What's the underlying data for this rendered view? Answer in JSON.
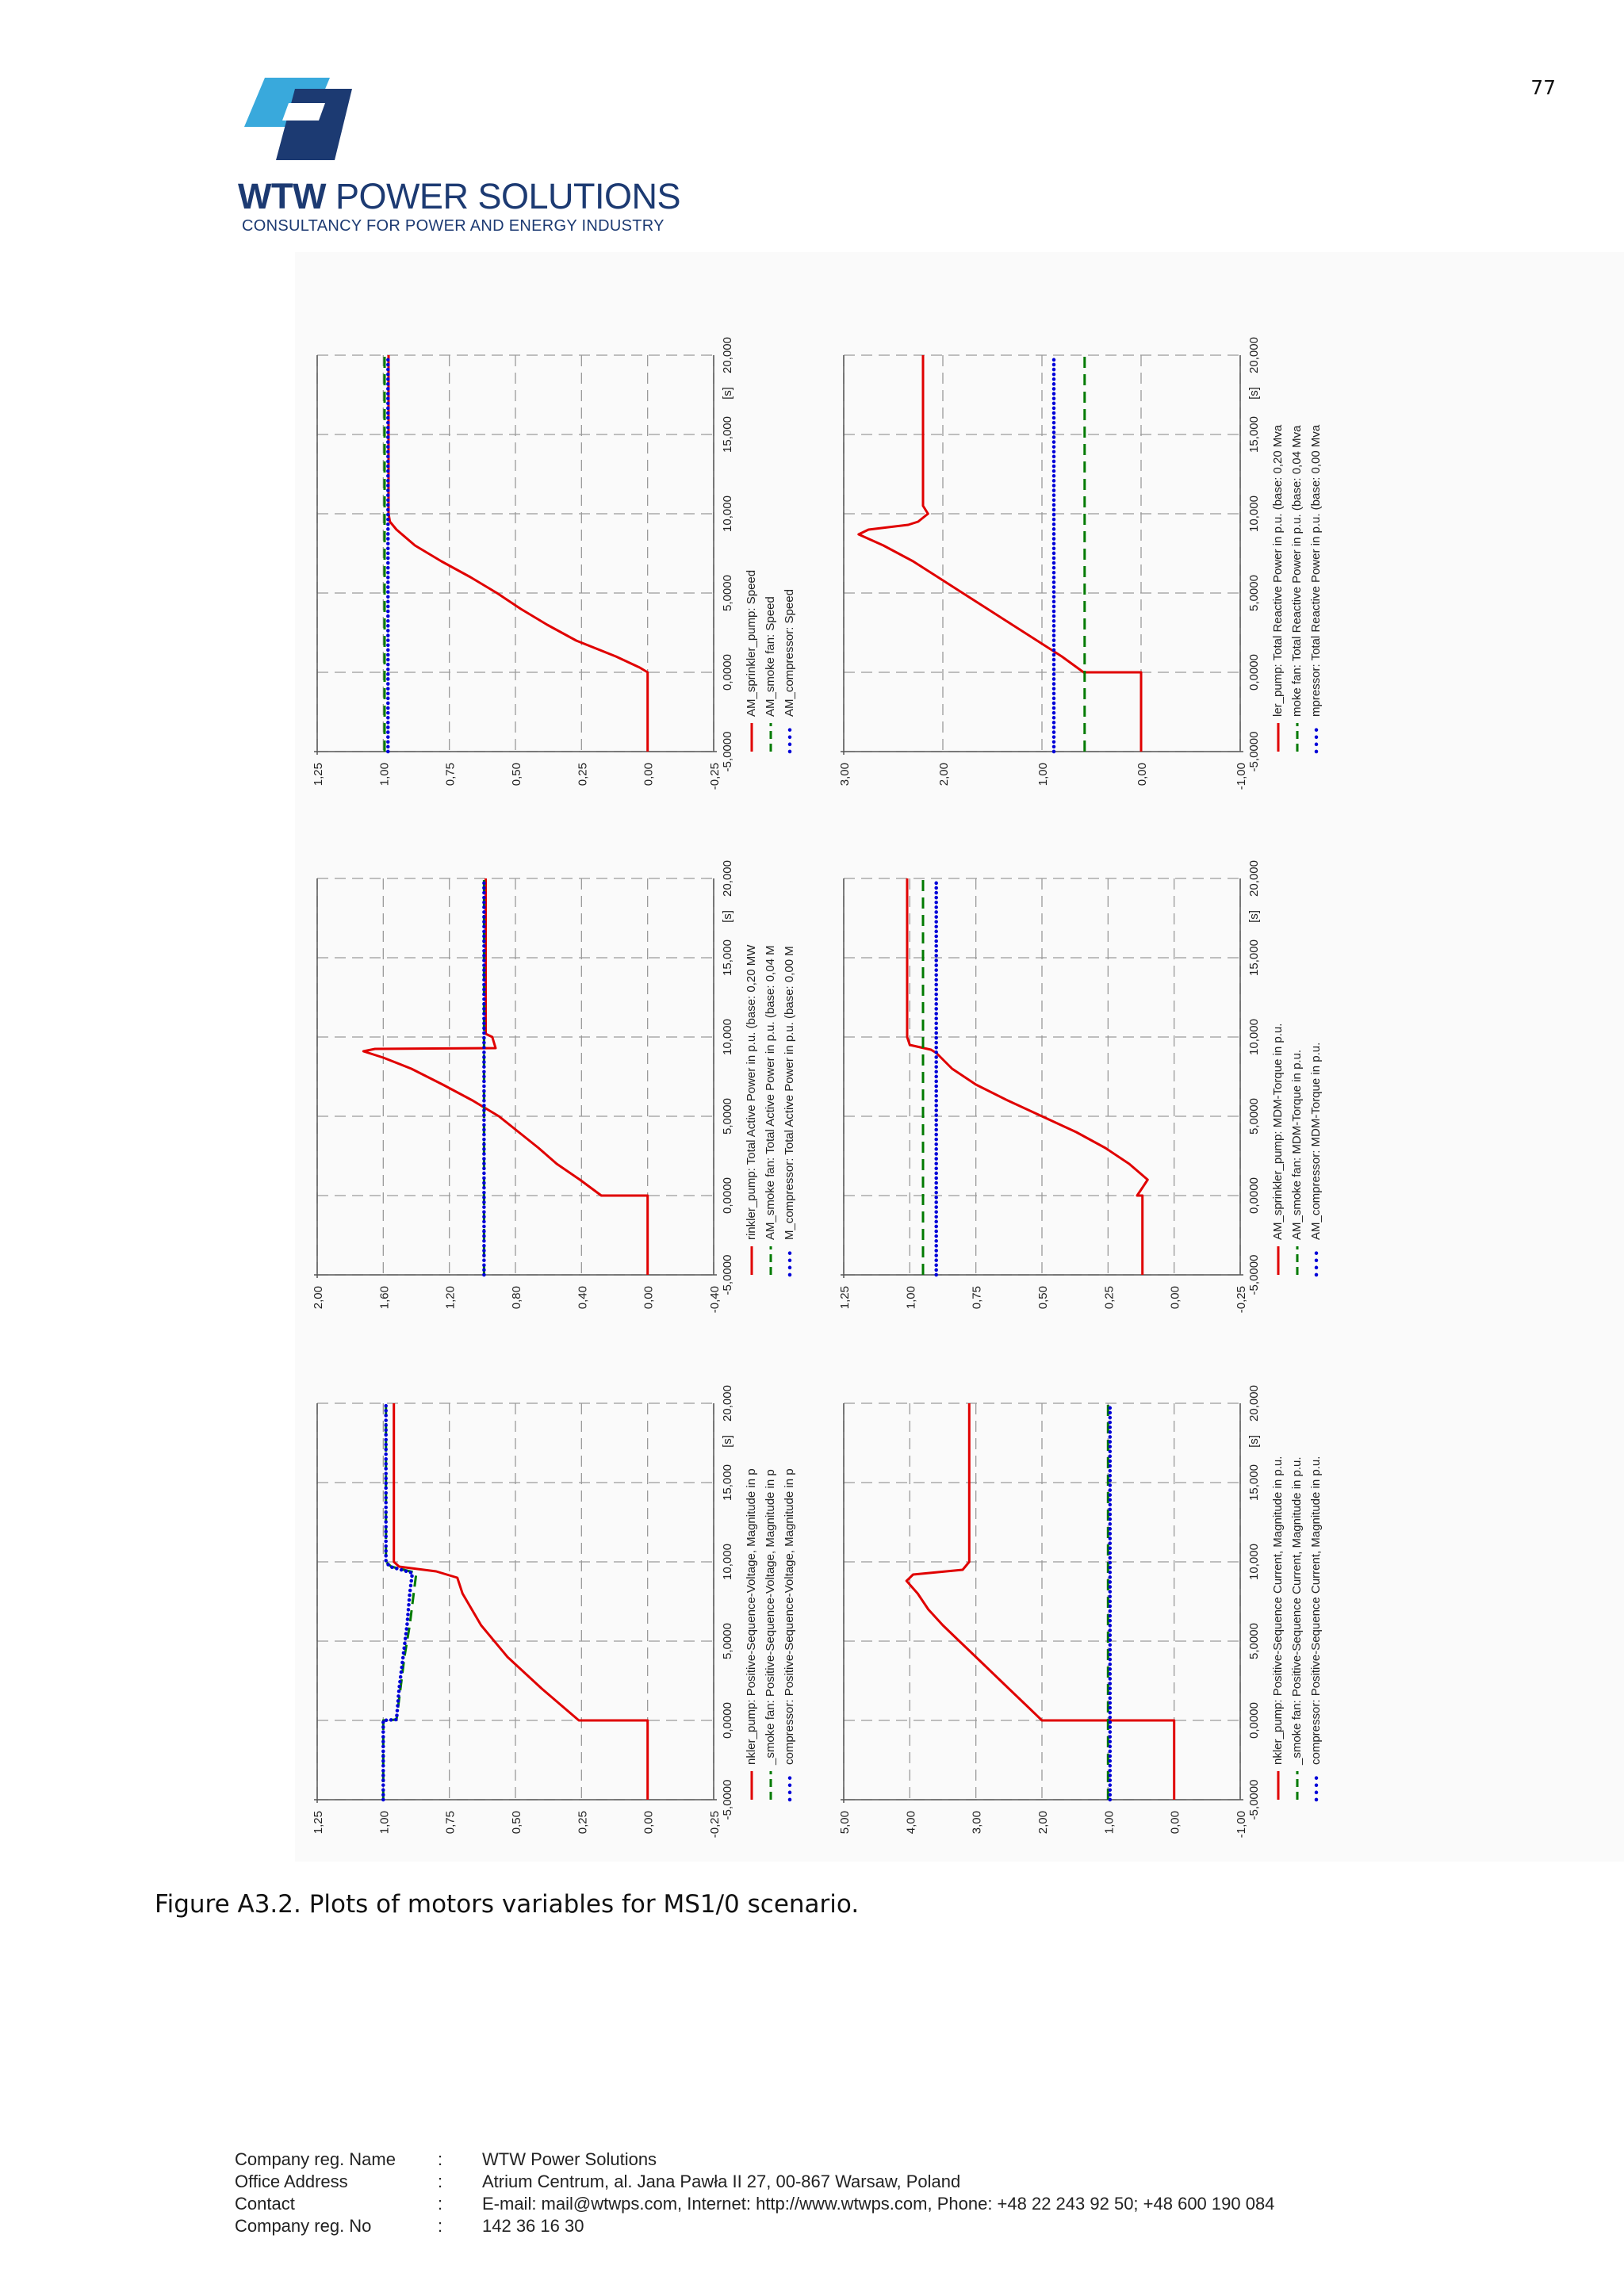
{
  "page_number": "77",
  "header": {
    "brand_bold": "WTW",
    "brand_rest": " POWER SOLUTIONS",
    "tagline": "CONSULTANCY FOR POWER AND ENERGY INDUSTRY"
  },
  "caption": "Figure A3.2. Plots of motors variables for MS1/0 scenario.",
  "footer": {
    "rows": [
      {
        "label": "Company reg. Name",
        "sep": ":",
        "value": "WTW Power Solutions"
      },
      {
        "label": "Office Address",
        "sep": ":",
        "value": "Atrium Centrum, al. Jana Pawła II 27, 00-867 Warsaw, Poland"
      },
      {
        "label": "Contact",
        "sep": ":",
        "value": "E-mail: mail@wtwps.com, Internet: http://www.wtwps.com, Phone: +48 22 243 92 50; +48 600 190 084"
      },
      {
        "label": "Company reg. No",
        "sep": ":",
        "value": "142 36 16 30"
      }
    ]
  },
  "colors": {
    "brand_blue": "#1c3a72",
    "logo_light": "#39a9dc",
    "logo_dark": "#1c3a72",
    "series_red": "#e00000",
    "series_green": "#007a00",
    "series_blue": "#0000d8",
    "grid": "#9a9a9a"
  },
  "chart_data": [
    {
      "type": "line",
      "title": "Speed",
      "x_ticks": [
        "-5,0000",
        "0,0000",
        "5,0000",
        "10,000",
        "15,000",
        "[s]",
        "20,000"
      ],
      "xlim": [
        -5,
        20
      ],
      "y_ticks": [
        "1,25",
        "1,00",
        "0,75",
        "0,50",
        "0,25",
        "0,00",
        "-0,25"
      ],
      "ylim": [
        -0.25,
        1.25
      ],
      "series": [
        {
          "name": "AM_sprinkler_pump: Speed",
          "style": "solid",
          "color": "red",
          "points": [
            [
              -5,
              0
            ],
            [
              0,
              0
            ],
            [
              0.3,
              0.03
            ],
            [
              1,
              0.12
            ],
            [
              2,
              0.27
            ],
            [
              3,
              0.38
            ],
            [
              4,
              0.48
            ],
            [
              5,
              0.57
            ],
            [
              6,
              0.67
            ],
            [
              7,
              0.78
            ],
            [
              8,
              0.88
            ],
            [
              9,
              0.95
            ],
            [
              9.5,
              0.975
            ],
            [
              10,
              0.98
            ],
            [
              20,
              0.98
            ]
          ]
        },
        {
          "name": "AM_smoke fan: Speed",
          "style": "dashed",
          "color": "green",
          "points": [
            [
              -5,
              0.995
            ],
            [
              20,
              0.995
            ]
          ]
        },
        {
          "name": "AM_compressor: Speed",
          "style": "dotted",
          "color": "blue",
          "points": [
            [
              -5,
              0.982
            ],
            [
              20,
              0.982
            ]
          ]
        }
      ]
    },
    {
      "type": "line",
      "title": "Total Active Power",
      "x_ticks": [
        "-5,0000",
        "0,0000",
        "5,0000",
        "10,000",
        "15,000",
        "[s]",
        "20,000"
      ],
      "xlim": [
        -5,
        20
      ],
      "y_ticks": [
        "2,00",
        "1,60",
        "1,20",
        "0,80",
        "0,40",
        "0,00",
        "-0,40"
      ],
      "ylim": [
        -0.4,
        2.0
      ],
      "series": [
        {
          "name": "rinkler_pump: Total Active Power in p.u. (base: 0,20 MW",
          "style": "solid",
          "color": "red",
          "points": [
            [
              -5,
              0
            ],
            [
              0,
              0
            ],
            [
              0,
              0.28
            ],
            [
              1,
              0.41
            ],
            [
              2,
              0.55
            ],
            [
              3,
              0.66
            ],
            [
              4,
              0.78
            ],
            [
              5,
              0.9
            ],
            [
              6,
              1.06
            ],
            [
              7,
              1.24
            ],
            [
              8,
              1.43
            ],
            [
              8.7,
              1.6
            ],
            [
              9.1,
              1.72
            ],
            [
              9.25,
              1.65
            ],
            [
              9.3,
              0.92
            ],
            [
              10,
              0.94
            ],
            [
              10.2,
              0.98
            ],
            [
              20,
              0.98
            ]
          ]
        },
        {
          "name": "AM_smoke fan: Total Active Power in p.u. (base: 0,04 M",
          "style": "dashed",
          "color": "green",
          "points": [
            [
              -5,
              0.99
            ],
            [
              20,
              0.99
            ]
          ]
        },
        {
          "name": "M_compressor: Total Active Power in p.u. (base: 0,00 M",
          "style": "dotted",
          "color": "blue",
          "points": [
            [
              -5,
              0.99
            ],
            [
              20,
              0.99
            ]
          ]
        }
      ]
    },
    {
      "type": "line",
      "title": "Positive-Sequence-Voltage, Magnitude",
      "x_ticks": [
        "-5,0000",
        "0,0000",
        "5,0000",
        "10,000",
        "15,000",
        "[s]",
        "20,000"
      ],
      "xlim": [
        -5,
        20
      ],
      "y_ticks": [
        "1,25",
        "1,00",
        "0,75",
        "0,50",
        "0,25",
        "0,00",
        "-0,25"
      ],
      "ylim": [
        -0.25,
        1.25
      ],
      "series": [
        {
          "name": "nkler_pump: Positive-Sequence-Voltage, Magnitude in p",
          "style": "solid",
          "color": "red",
          "points": [
            [
              -5,
              0
            ],
            [
              0,
              0
            ],
            [
              0,
              0.26
            ],
            [
              2,
              0.4
            ],
            [
              4,
              0.53
            ],
            [
              6,
              0.63
            ],
            [
              8,
              0.7
            ],
            [
              9,
              0.72
            ],
            [
              9.4,
              0.8
            ],
            [
              9.7,
              0.94
            ],
            [
              10,
              0.96
            ],
            [
              20,
              0.96
            ]
          ]
        },
        {
          "name": "_smoke fan: Positive-Sequence-Voltage, Magnitude in p",
          "style": "dashed",
          "color": "green",
          "points": [
            [
              -5,
              1.0
            ],
            [
              0,
              1.0
            ],
            [
              0.05,
              0.95
            ],
            [
              2,
              0.935
            ],
            [
              4,
              0.92
            ],
            [
              6,
              0.9
            ],
            [
              8,
              0.885
            ],
            [
              9.3,
              0.875
            ],
            [
              9.7,
              0.97
            ],
            [
              10,
              0.99
            ],
            [
              20,
              0.99
            ]
          ]
        },
        {
          "name": "compressor: Positive-Sequence-Voltage, Magnitude in p",
          "style": "dotted",
          "color": "blue",
          "points": [
            [
              -5,
              1.0
            ],
            [
              0,
              1.0
            ],
            [
              0.05,
              0.95
            ],
            [
              2,
              0.94
            ],
            [
              4,
              0.925
            ],
            [
              6,
              0.91
            ],
            [
              8,
              0.9
            ],
            [
              9.3,
              0.89
            ],
            [
              9.7,
              0.975
            ],
            [
              10,
              0.99
            ],
            [
              20,
              0.99
            ]
          ]
        }
      ]
    },
    {
      "type": "line",
      "title": "Total Reactive Power",
      "x_ticks": [
        "-5,0000",
        "0,0000",
        "5,0000",
        "10,000",
        "15,000",
        "[s]",
        "20,000"
      ],
      "xlim": [
        -5,
        20
      ],
      "y_ticks": [
        "3,00",
        "2,00",
        "1,00",
        "0,00",
        "-1,00"
      ],
      "ylim": [
        -1.0,
        3.0
      ],
      "series": [
        {
          "name": "ler_pump: Total Reactive Power in p.u. (base: 0,20 Mva",
          "style": "solid",
          "color": "red",
          "points": [
            [
              -5,
              0
            ],
            [
              0,
              0
            ],
            [
              0,
              0.58
            ],
            [
              1,
              0.8
            ],
            [
              2,
              1.05
            ],
            [
              3,
              1.3
            ],
            [
              4,
              1.55
            ],
            [
              5,
              1.8
            ],
            [
              6,
              2.05
            ],
            [
              7,
              2.3
            ],
            [
              8,
              2.6
            ],
            [
              8.7,
              2.85
            ],
            [
              9,
              2.75
            ],
            [
              9.3,
              2.35
            ],
            [
              9.5,
              2.25
            ],
            [
              10,
              2.15
            ],
            [
              10.5,
              2.2
            ],
            [
              20,
              2.2
            ]
          ]
        },
        {
          "name": "moke fan: Total Reactive Power in p.u. (base: 0,04 Mva",
          "style": "dashed",
          "color": "green",
          "points": [
            [
              -5,
              0.57
            ],
            [
              20,
              0.57
            ]
          ]
        },
        {
          "name": "mpressor: Total Reactive Power in p.u. (base: 0,00 Mva",
          "style": "dotted",
          "color": "blue",
          "points": [
            [
              -5,
              0.88
            ],
            [
              20,
              0.88
            ]
          ]
        }
      ]
    },
    {
      "type": "line",
      "title": "MDM-Torque",
      "x_ticks": [
        "-5,0000",
        "0,0000",
        "5,0000",
        "10,000",
        "15,000",
        "[s]",
        "20,000"
      ],
      "xlim": [
        -5,
        20
      ],
      "y_ticks": [
        "1,25",
        "1,00",
        "0,75",
        "0,50",
        "0,25",
        "0,00",
        "-0,25"
      ],
      "ylim": [
        -0.25,
        1.25
      ],
      "series": [
        {
          "name": "AM_sprinkler_pump: MDM-Torque in p.u.",
          "style": "solid",
          "color": "red",
          "points": [
            [
              -5,
              0.12
            ],
            [
              0,
              0.12
            ],
            [
              0,
              0.14
            ],
            [
              0.5,
              0.12
            ],
            [
              1,
              0.1
            ],
            [
              2,
              0.17
            ],
            [
              3,
              0.26
            ],
            [
              4,
              0.37
            ],
            [
              5,
              0.5
            ],
            [
              6,
              0.63
            ],
            [
              7,
              0.75
            ],
            [
              8,
              0.84
            ],
            [
              9,
              0.9
            ],
            [
              9.2,
              0.92
            ],
            [
              9.5,
              1.0
            ],
            [
              10,
              1.01
            ],
            [
              20,
              1.01
            ]
          ]
        },
        {
          "name": "AM_smoke fan: MDM-Torque in p.u.",
          "style": "dashed",
          "color": "green",
          "points": [
            [
              -5,
              0.95
            ],
            [
              20,
              0.95
            ]
          ]
        },
        {
          "name": "AM_compressor: MDM-Torque in p.u.",
          "style": "dotted",
          "color": "blue",
          "points": [
            [
              -5,
              0.9
            ],
            [
              20,
              0.9
            ]
          ]
        }
      ]
    },
    {
      "type": "line",
      "title": "Positive-Sequence Current, Magnitude",
      "x_ticks": [
        "-5,0000",
        "0,0000",
        "5,0000",
        "10,000",
        "15,000",
        "[s]",
        "20,000"
      ],
      "xlim": [
        -5,
        20
      ],
      "y_ticks": [
        "5,00",
        "4,00",
        "3,00",
        "2,00",
        "1,00",
        "0,00",
        "-1,00"
      ],
      "ylim": [
        -1.0,
        5.0
      ],
      "series": [
        {
          "name": "nkler_pump: Positive-Sequence Current, Magnitude in p.u.",
          "style": "solid",
          "color": "red",
          "points": [
            [
              -5,
              0
            ],
            [
              0,
              0
            ],
            [
              0,
              2.0
            ],
            [
              1,
              2.25
            ],
            [
              2,
              2.5
            ],
            [
              3,
              2.75
            ],
            [
              4,
              3.0
            ],
            [
              5,
              3.25
            ],
            [
              6,
              3.5
            ],
            [
              7,
              3.72
            ],
            [
              8,
              3.88
            ],
            [
              8.8,
              4.05
            ],
            [
              9.2,
              3.95
            ],
            [
              9.5,
              3.2
            ],
            [
              10,
              3.1
            ],
            [
              20,
              3.1
            ]
          ]
        },
        {
          "name": "_smoke fan: Positive-Sequence Current, Magnitude in p.u.",
          "style": "dashed",
          "color": "green",
          "points": [
            [
              -5,
              1.0
            ],
            [
              20,
              1.0
            ]
          ]
        },
        {
          "name": "compressor: Positive-Sequence Current, Magnitude in p.u.",
          "style": "dotted",
          "color": "blue",
          "points": [
            [
              -5,
              0.97
            ],
            [
              20,
              0.97
            ]
          ]
        }
      ]
    }
  ]
}
